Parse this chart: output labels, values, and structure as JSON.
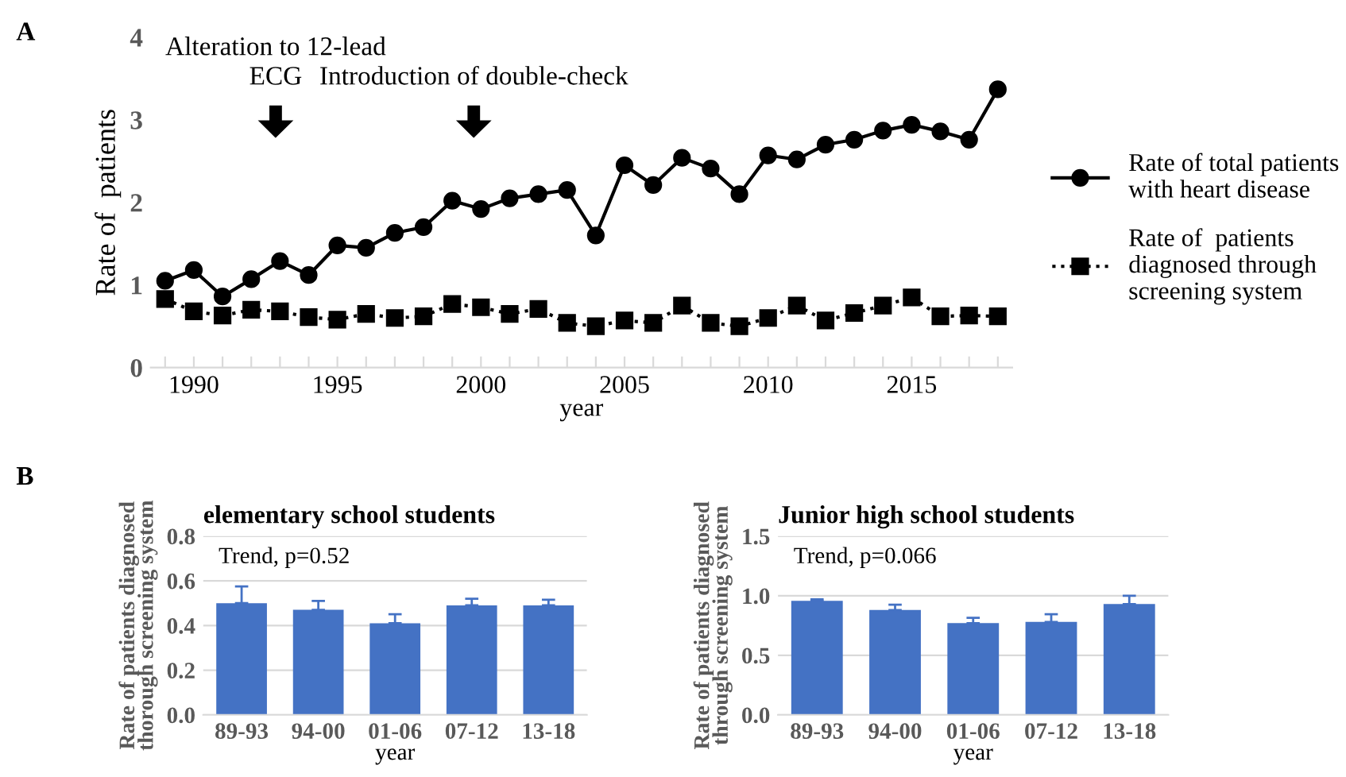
{
  "chart_data": [
    {
      "type": "line",
      "xlabel": "year",
      "ylabel": "Rate of  patients",
      "x": [
        1989,
        1990,
        1991,
        1992,
        1993,
        1994,
        1995,
        1996,
        1997,
        1998,
        1999,
        2000,
        2001,
        2002,
        2003,
        2004,
        2005,
        2006,
        2007,
        2008,
        2009,
        2010,
        2011,
        2012,
        2013,
        2014,
        2015,
        2016,
        2017,
        2018
      ],
      "series": [
        {
          "name": "Rate of total patients\nwith heart disease",
          "color": "#000000",
          "marker": "circle",
          "line_style": "solid",
          "values": [
            1.05,
            1.18,
            0.86,
            1.07,
            1.29,
            1.12,
            1.48,
            1.45,
            1.63,
            1.7,
            2.02,
            1.92,
            2.05,
            2.1,
            2.15,
            1.6,
            2.45,
            2.21,
            2.54,
            2.41,
            2.1,
            2.57,
            2.52,
            2.7,
            2.76,
            2.87,
            2.94,
            2.86,
            2.76,
            3.37
          ]
        },
        {
          "name": "Rate of  patients\ndiagnosed through\nscreening system",
          "color": "#000000",
          "marker": "square",
          "line_style": "dotted",
          "values": [
            0.83,
            0.68,
            0.63,
            0.7,
            0.68,
            0.61,
            0.58,
            0.65,
            0.6,
            0.62,
            0.77,
            0.73,
            0.65,
            0.71,
            0.54,
            0.5,
            0.57,
            0.54,
            0.75,
            0.54,
            0.5,
            0.6,
            0.75,
            0.57,
            0.66,
            0.75,
            0.85,
            0.62,
            0.63,
            0.62
          ]
        }
      ],
      "xlim": [
        1988.5,
        2018.5
      ],
      "xticks": [
        {
          "value": 1989,
          "label": null
        },
        1990,
        {
          "value": 1991,
          "label": null
        },
        {
          "value": 1992,
          "label": null
        },
        {
          "value": 1993,
          "label": null
        },
        {
          "value": 1994,
          "label": null
        },
        1995,
        {
          "value": 1996,
          "label": null
        },
        {
          "value": 1997,
          "label": null
        },
        {
          "value": 1998,
          "label": null
        },
        {
          "value": 1999,
          "label": null
        },
        2000,
        {
          "value": 2001,
          "label": null
        },
        {
          "value": 2002,
          "label": null
        },
        {
          "value": 2003,
          "label": null
        },
        {
          "value": 2004,
          "label": null
        },
        2005,
        {
          "value": 2006,
          "label": null
        },
        {
          "value": 2007,
          "label": null
        },
        {
          "value": 2008,
          "label": null
        },
        {
          "value": 2009,
          "label": null
        },
        2010,
        {
          "value": 2011,
          "label": null
        },
        {
          "value": 2012,
          "label": null
        },
        {
          "value": 2013,
          "label": null
        },
        {
          "value": 2014,
          "label": null
        },
        2015,
        {
          "value": 2016,
          "label": null
        },
        {
          "value": 2017,
          "label": null
        },
        {
          "value": 2018,
          "label": null
        }
      ],
      "ylim": [
        0,
        4
      ],
      "yticks": [
        0,
        1,
        2,
        3,
        4
      ],
      "grid": false,
      "legend": "right",
      "annotations": [
        "A",
        "Alteration to 12-lead\nECG",
        "Introduction of double-check"
      ]
    },
    {
      "type": "bar",
      "title": "elementary school students",
      "xlabel": "year",
      "ylabel": "Rate of patients diagnosed\nthorough screening system",
      "categories": [
        "89-93",
        "94-00",
        "01-06",
        "07-12",
        "13-18"
      ],
      "values": [
        0.5,
        0.47,
        0.41,
        0.49,
        0.49
      ],
      "errors": [
        [
          0.5,
          0.575
        ],
        [
          0.47,
          0.51
        ],
        [
          0.41,
          0.45
        ],
        [
          0.49,
          0.52
        ],
        [
          0.49,
          0.515
        ]
      ],
      "color": "#4472c4",
      "ylim": [
        0,
        0.8
      ],
      "yticks": [
        {
          "value": 0,
          "label": "0.0"
        },
        {
          "value": 0.2,
          "label": "0.2"
        },
        {
          "value": 0.4,
          "label": "0.4"
        },
        {
          "value": 0.6,
          "label": "0.6"
        },
        {
          "value": 0.8,
          "label": "0.8"
        }
      ],
      "grid": "y",
      "annotations": [
        "B",
        "Trend, p=0.52"
      ]
    },
    {
      "type": "bar",
      "title": "Junior high school students",
      "xlabel": "year",
      "ylabel": "Rate of patients diagnosed\nthrough screening system",
      "categories": [
        "89-93",
        "94-00",
        "01-06",
        "07-12",
        "13-18"
      ],
      "values": [
        0.957,
        0.88,
        0.77,
        0.78,
        0.93
      ],
      "errors": [
        [
          0.957,
          0.97
        ],
        [
          0.88,
          0.925
        ],
        [
          0.77,
          0.815
        ],
        [
          0.78,
          0.845
        ],
        [
          0.93,
          1.0
        ]
      ],
      "color": "#4472c4",
      "ylim": [
        0,
        1.5
      ],
      "yticks": [
        {
          "value": 0,
          "label": "0.0"
        },
        {
          "value": 0.5,
          "label": "0.5"
        },
        {
          "value": 1.0,
          "label": "1.0"
        },
        {
          "value": 1.5,
          "label": "1.5"
        }
      ],
      "grid": "y",
      "annotations": [
        "Trend, p=0.066"
      ]
    }
  ]
}
